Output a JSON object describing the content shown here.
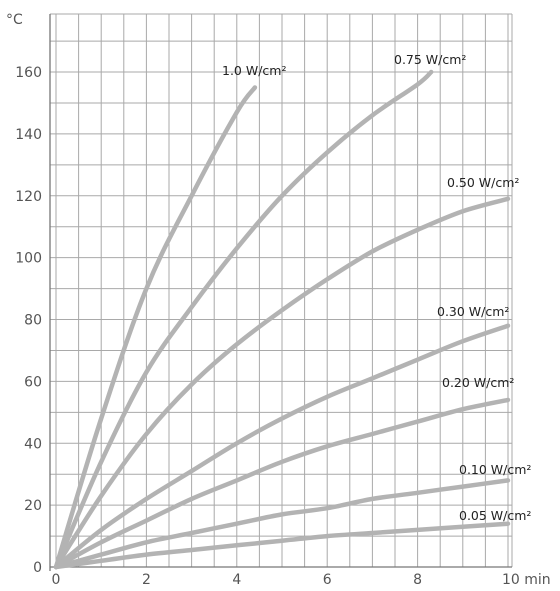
{
  "chart_data": {
    "type": "line",
    "title": "",
    "ylabel": "°C",
    "xlabel": "10 min",
    "xlim": [
      0,
      10
    ],
    "ylim": [
      0,
      170
    ],
    "x_ticks": [
      0,
      2,
      4,
      6,
      8
    ],
    "y_ticks": [
      0,
      20,
      40,
      60,
      80,
      100,
      120,
      140,
      160
    ],
    "grid": true,
    "series": [
      {
        "name": "1.0 W/cm²",
        "x": [
          0,
          1,
          2,
          3,
          4,
          4.4
        ],
        "y": [
          0,
          48,
          90,
          120,
          147,
          155
        ]
      },
      {
        "name": "0.75 W/cm²",
        "x": [
          0,
          1,
          2,
          3,
          4,
          5,
          6,
          7,
          8,
          8.3
        ],
        "y": [
          0,
          34,
          63,
          84,
          103,
          120,
          134,
          146,
          156,
          160
        ]
      },
      {
        "name": "0.50 W/cm²",
        "x": [
          0,
          1,
          2,
          3,
          4,
          5,
          6,
          7,
          8,
          9,
          10
        ],
        "y": [
          0,
          23,
          43,
          59,
          72,
          83,
          93,
          102,
          109,
          115,
          119
        ]
      },
      {
        "name": "0.30 W/cm²",
        "x": [
          0,
          1,
          2,
          3,
          4,
          5,
          6,
          7,
          8,
          9,
          10
        ],
        "y": [
          0,
          12,
          22,
          31,
          40,
          48,
          55,
          61,
          67,
          73,
          78
        ]
      },
      {
        "name": "0.20 W/cm²",
        "x": [
          0,
          1,
          2,
          3,
          4,
          5,
          6,
          7,
          8,
          9,
          10
        ],
        "y": [
          0,
          8,
          15,
          22,
          28,
          34,
          39,
          43,
          47,
          51,
          54
        ]
      },
      {
        "name": "0.10 W/cm²",
        "x": [
          0,
          1,
          2,
          3,
          4,
          5,
          6,
          7,
          8,
          9,
          10
        ],
        "y": [
          0,
          4,
          8,
          11,
          14,
          17,
          19,
          22,
          24,
          26,
          28
        ]
      },
      {
        "name": "0.05 W/cm²",
        "x": [
          0,
          1,
          2,
          3,
          4,
          5,
          6,
          7,
          8,
          9,
          10
        ],
        "y": [
          0,
          2,
          4,
          5.5,
          7,
          8.5,
          10,
          11,
          12,
          13,
          14
        ]
      }
    ]
  }
}
